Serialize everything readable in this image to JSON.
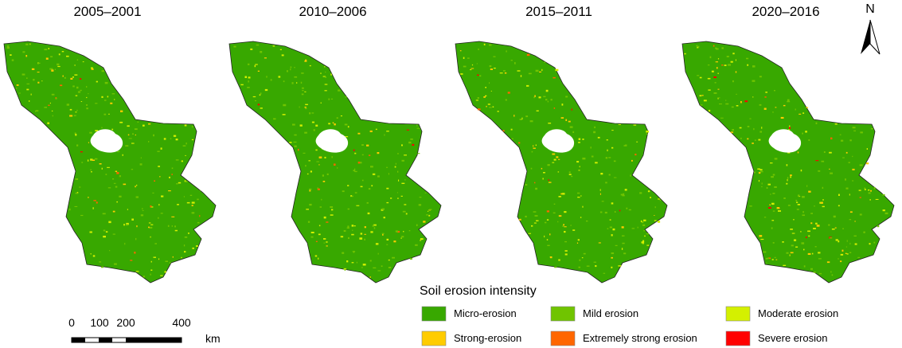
{
  "panels": [
    {
      "title": "2005–2001"
    },
    {
      "title": "2010–2006"
    },
    {
      "title": "2015–2011"
    },
    {
      "title": "2020–2016"
    }
  ],
  "north": "N",
  "legend": {
    "title": "Soil erosion intensity",
    "items": [
      {
        "label": "Micro-erosion",
        "color": "#38a800"
      },
      {
        "label": "Mild erosion",
        "color": "#70c400"
      },
      {
        "label": "Moderate erosion",
        "color": "#d4f000"
      },
      {
        "label": "Strong-erosion",
        "color": "#ffcc00"
      },
      {
        "label": "Extremely strong erosion",
        "color": "#ff6600"
      },
      {
        "label": "Severe erosion",
        "color": "#ff0000"
      }
    ]
  },
  "scale_bar": {
    "labels": [
      "0",
      "100",
      "200",
      "400"
    ],
    "unit": "km"
  }
}
